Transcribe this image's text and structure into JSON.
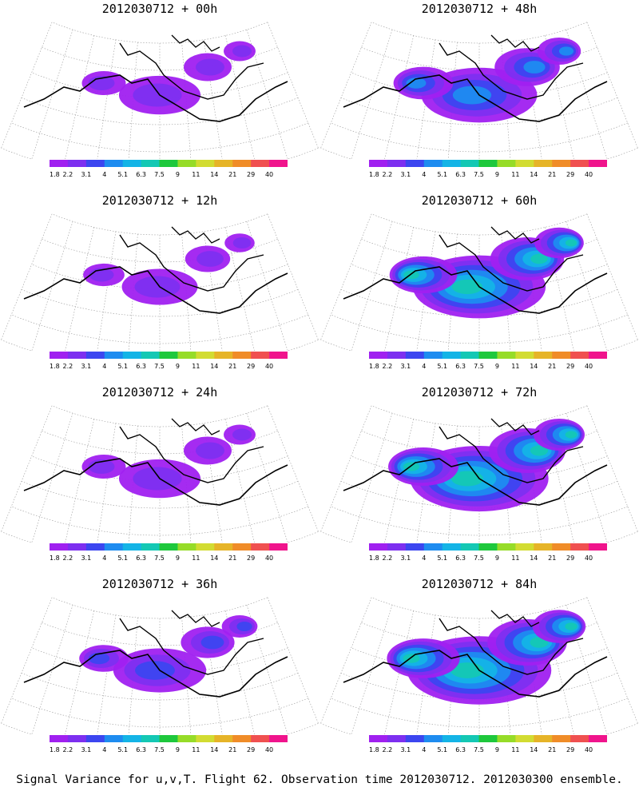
{
  "caption": "Signal Variance for u,v,T. Flight 62. Observation time 2012030712. 2012030300 ensemble.",
  "chart_data": {
    "type": "heatmap",
    "colorbar": {
      "ticks": [
        "1.8",
        "2.2",
        "3.1",
        "4",
        "5.1",
        "6.3",
        "7.5",
        "9",
        "11",
        "14",
        "21",
        "29",
        "40"
      ],
      "colors": [
        "#a020f0",
        "#7d2ff0",
        "#3c46f0",
        "#1e8cf0",
        "#14b4e6",
        "#14c8b4",
        "#1ec83c",
        "#96dc28",
        "#d2dc32",
        "#e6b428",
        "#f08c28",
        "#f05050",
        "#f0148c"
      ]
    },
    "panels": [
      {
        "title": "2012030712 + 00h",
        "lead": "00h",
        "intensity": 0.25
      },
      {
        "title": "2012030712 + 48h",
        "lead": "48h",
        "intensity": 0.55
      },
      {
        "title": "2012030712 + 12h",
        "lead": "12h",
        "intensity": 0.2
      },
      {
        "title": "2012030712 + 60h",
        "lead": "60h",
        "intensity": 0.7
      },
      {
        "title": "2012030712 + 24h",
        "lead": "24h",
        "intensity": 0.25
      },
      {
        "title": "2012030712 + 72h",
        "lead": "72h",
        "intensity": 0.75
      },
      {
        "title": "2012030712 + 36h",
        "lead": "36h",
        "intensity": 0.35
      },
      {
        "title": "2012030712 + 84h",
        "lead": "84h",
        "intensity": 0.8
      }
    ]
  }
}
